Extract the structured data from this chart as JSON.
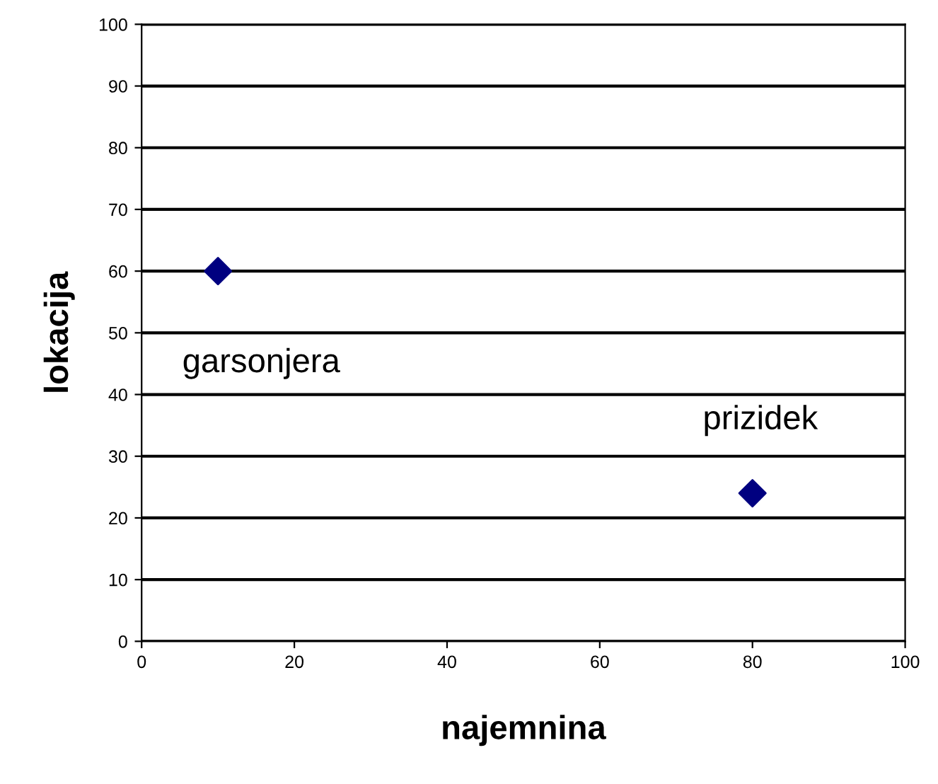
{
  "chart_data": {
    "type": "scatter",
    "xlabel": "najemnina",
    "ylabel": "lokacija",
    "x": [
      10,
      80
    ],
    "series": [
      {
        "color": "#000080",
        "values": [
          60,
          24
        ]
      }
    ],
    "marker": "diamond",
    "grid": "y",
    "legend": false,
    "xlim": [
      0,
      100
    ],
    "ylim": [
      0,
      100
    ],
    "xticks": [
      0,
      20,
      40,
      60,
      80,
      100
    ],
    "yticks": [
      0,
      10,
      20,
      30,
      40,
      50,
      60,
      70,
      80,
      90,
      100
    ],
    "annotations": [
      {
        "text": "garsonjera",
        "x": 10,
        "y": 60
      },
      {
        "text": "prizidek",
        "x": 80,
        "y": 24
      }
    ]
  }
}
